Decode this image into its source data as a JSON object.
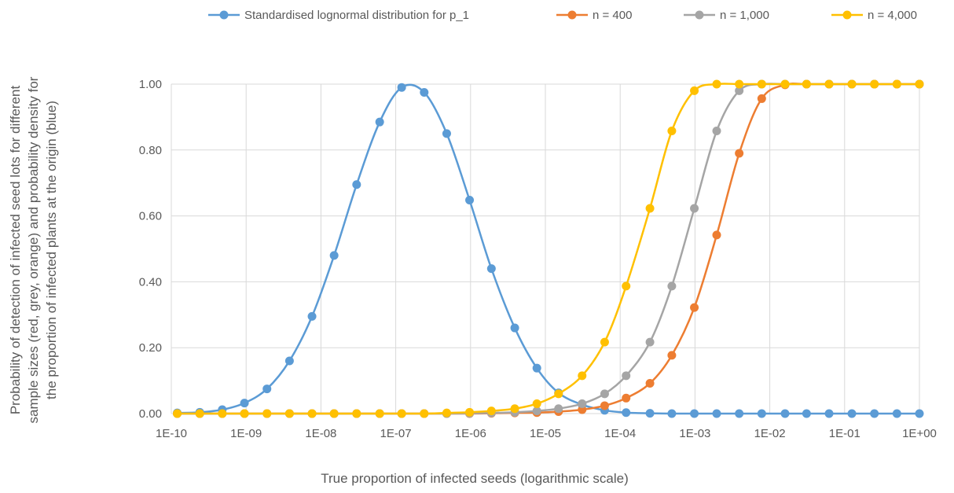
{
  "chart_data": {
    "type": "line",
    "title": "",
    "xlabel": "True proportion of infected seeds (logarithmic scale)",
    "ylabel_lines": [
      "Probability of detection of infected seed lots for different",
      "sample sizes (red, grey, orange) and probability density for",
      "the proportion of infected plants at the origin (blue)"
    ],
    "x_scale": "log",
    "xlim": [
      "1E-10",
      "1E+00"
    ],
    "ylim": [
      0,
      1
    ],
    "x_ticks": [
      "1E-10",
      "1E-09",
      "1E-08",
      "1E-07",
      "1E-06",
      "1E-05",
      "1E-04",
      "1E-03",
      "1E-02",
      "1E-01",
      "1E+00"
    ],
    "y_ticks": [
      "0.00",
      "0.20",
      "0.40",
      "0.60",
      "0.80",
      "1.00"
    ],
    "grid": true,
    "legend_position": "top",
    "x": [
      "1.2E-10",
      "2.4E-10",
      "4.8E-10",
      "9.5E-10",
      "1.9E-09",
      "3.8E-09",
      "7.6E-09",
      "1.5E-08",
      "3.0E-08",
      "6.1E-08",
      "1.2E-07",
      "2.4E-07",
      "4.8E-07",
      "9.7E-07",
      "1.9E-06",
      "3.9E-06",
      "7.7E-06",
      "1.5E-05",
      "3.1E-05",
      "6.2E-05",
      "1.2E-04",
      "2.5E-04",
      "4.9E-04",
      "9.8E-04",
      "1.95E-03",
      "3.9E-03",
      "7.8E-03",
      "1.6E-02",
      "3.1E-02",
      "6.2E-02",
      "1.25E-01",
      "2.5E-01",
      "5.0E-01",
      "1.0E+00"
    ],
    "series": [
      {
        "name": "Standardised lognormal distribution for p_1",
        "color": "#5B9BD5",
        "values": [
          0.002,
          0.004,
          0.012,
          0.032,
          0.075,
          0.16,
          0.295,
          0.48,
          0.695,
          0.885,
          0.99,
          0.975,
          0.85,
          0.648,
          0.44,
          0.26,
          0.138,
          0.063,
          0.027,
          0.01,
          0.003,
          0.001,
          0.0,
          0.0,
          0.0,
          0.0,
          0.0,
          0.0,
          0.0,
          0.0,
          0.0,
          0.0,
          0.0,
          0.0
        ]
      },
      {
        "name": "n = 400",
        "color": "#ED7D31",
        "values": [
          0,
          0,
          0,
          0,
          0,
          0,
          0,
          0,
          0,
          0,
          0,
          0,
          0,
          0,
          0.001,
          0.002,
          0.003,
          0.006,
          0.012,
          0.024,
          0.047,
          0.092,
          0.177,
          0.322,
          0.542,
          0.79,
          0.956,
          0.998,
          1.0,
          1.0,
          1.0,
          1.0,
          1.0,
          1.0
        ]
      },
      {
        "name": "n = 1,000",
        "color": "#A5A5A5",
        "values": [
          0,
          0,
          0,
          0,
          0,
          0,
          0,
          0,
          0,
          0,
          0,
          0,
          0,
          0.001,
          0.002,
          0.004,
          0.008,
          0.015,
          0.03,
          0.06,
          0.115,
          0.217,
          0.387,
          0.623,
          0.858,
          0.98,
          1.0,
          1.0,
          1.0,
          1.0,
          1.0,
          1.0,
          1.0,
          1.0
        ]
      },
      {
        "name": "n = 4,000",
        "color": "#FFC000",
        "values": [
          0,
          0,
          0,
          0,
          0,
          0,
          0,
          0,
          0,
          0,
          0,
          0,
          0.002,
          0.004,
          0.008,
          0.015,
          0.03,
          0.06,
          0.115,
          0.217,
          0.387,
          0.623,
          0.858,
          0.98,
          1.0,
          1.0,
          1.0,
          1.0,
          1.0,
          1.0,
          1.0,
          1.0,
          1.0,
          1.0
        ]
      }
    ]
  }
}
